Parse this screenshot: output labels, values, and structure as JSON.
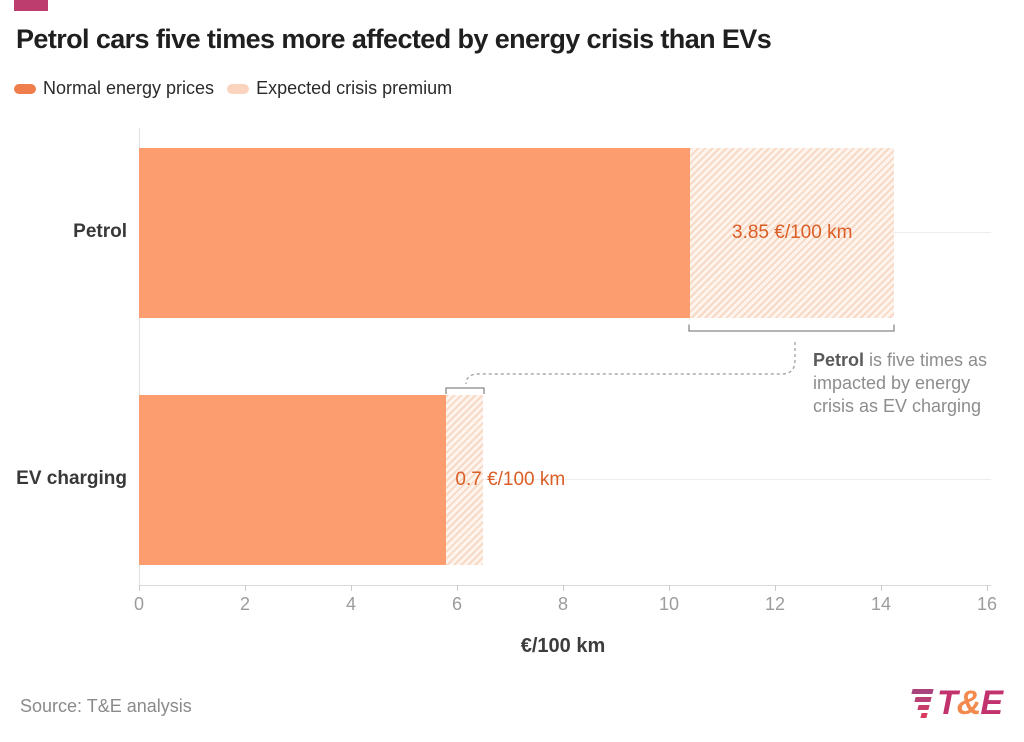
{
  "header": {
    "title": "Petrol cars five times more affected by energy crisis than EVs",
    "legend": [
      {
        "label": "Normal energy prices",
        "color": "#F07E4D"
      },
      {
        "label": "Expected crisis premium",
        "color": "#FAD4BE"
      }
    ]
  },
  "chart_data": {
    "type": "bar",
    "orientation": "horizontal",
    "title": "Petrol cars five times more affected by energy crisis than EVs",
    "categories": [
      "Petrol",
      "EV charging"
    ],
    "series": [
      {
        "name": "Normal energy prices",
        "values": [
          10.4,
          5.8
        ]
      },
      {
        "name": "Expected crisis premium",
        "values": [
          3.85,
          0.7
        ]
      }
    ],
    "bar_labels": [
      "3.85 €/100 km",
      "0.7 €/100 km"
    ],
    "xlabel": "€/100 km",
    "xlim": [
      0,
      16
    ],
    "xticks": [
      "0",
      "2",
      "4",
      "6",
      "8",
      "10",
      "12",
      "14",
      "16"
    ],
    "grid": "faint horizontal gridlines at category centers",
    "legend_position": "top-left",
    "annotation": "Petrol is five times as impacted by energy crisis as EV charging"
  },
  "annotation": {
    "bold": "Petrol",
    "rest": " is five times as impacted by energy crisis as EV charging"
  },
  "footer": {
    "source": "Source: T&E analysis",
    "logo_t": "T",
    "logo_amp": "&",
    "logo_e": "E"
  },
  "colors": {
    "bar_normal": "#FC9D6F",
    "hatch_stripe": "#F8D9C5",
    "hatch_bg": "#FDF4EE",
    "value_text": "#DB5E26",
    "brand_rect": "#BE3D6F",
    "logo_magenta": "#C2336E",
    "logo_orange": "#F28A4D",
    "logo_stripes": [
      "#A8437E",
      "#B84074",
      "#C93D6A",
      "#DA3A60"
    ]
  }
}
